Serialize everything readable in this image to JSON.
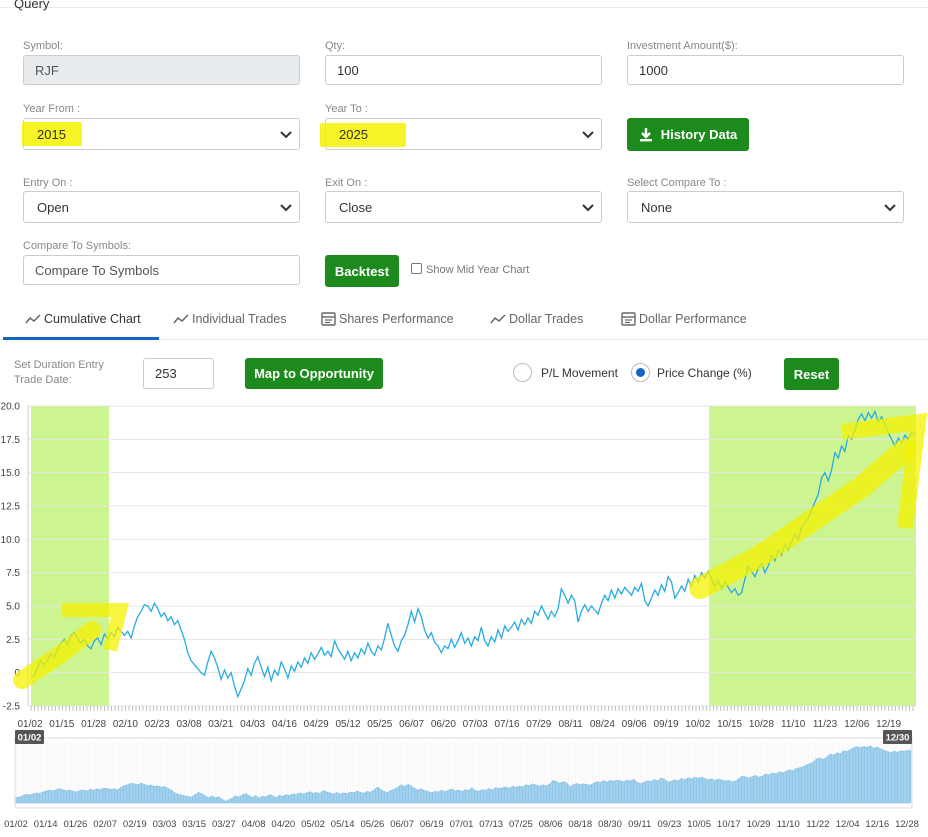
{
  "query": {
    "title": "Query",
    "symbol_label": "Symbol:",
    "symbol_value": "RJF",
    "qty_label": "Qty:",
    "qty_value": "100",
    "investment_label": "Investment Amount($):",
    "investment_value": "1000",
    "year_from_label": "Year From :",
    "year_from_value": "2015",
    "year_to_label": "Year To :",
    "year_to_value": "2025",
    "history_button": "History Data",
    "entry_on_label": "Entry On :",
    "entry_on_value": "Open",
    "exit_on_label": "Exit On :",
    "exit_on_value": "Close",
    "compare_label": "Select Compare To :",
    "compare_value": "None",
    "compare_symbols_label": "Compare To Symbols:",
    "compare_symbols_placeholder": "Compare To Symbols",
    "backtest_button": "Backtest",
    "mid_year_label": "Show Mid Year Chart"
  },
  "tabs": [
    {
      "label": "Cumulative Chart",
      "icon": "line-chart-icon"
    },
    {
      "label": "Individual Trades",
      "icon": "line-chart-icon"
    },
    {
      "label": "Shares Performance",
      "icon": "calendar-icon"
    },
    {
      "label": "Dollar Trades",
      "icon": "line-chart-icon"
    },
    {
      "label": "Dollar Performance",
      "icon": "calendar-icon"
    }
  ],
  "controls": {
    "duration_label_1": "Set Duration Entry",
    "duration_label_2": "Trade Date:",
    "duration_value": "253",
    "map_button": "Map to Opportunity",
    "pl_movement": "P/L Movement",
    "price_change": "Price Change (%)",
    "reset_button": "Reset"
  },
  "colors": {
    "accent_green": "#1d8a1d",
    "line": "#29abe2",
    "band": "#ccf490",
    "highlight": "#f4f200"
  },
  "chart_data": {
    "type": "line",
    "ylim": [
      -2.5,
      20
    ],
    "yticks": [
      "20.0",
      "17.5",
      "15.0",
      "12.5",
      "10.0",
      "7.5",
      "5.0",
      "2.5",
      "0",
      "-2.5"
    ],
    "xticks": [
      "01/02",
      "01/15",
      "01/28",
      "02/10",
      "02/23",
      "03/08",
      "03/21",
      "04/03",
      "04/16",
      "04/29",
      "05/12",
      "05/25",
      "06/07",
      "06/20",
      "07/03",
      "07/16",
      "07/29",
      "08/11",
      "08/24",
      "09/06",
      "09/19",
      "10/02",
      "10/15",
      "10/28",
      "11/10",
      "11/23",
      "12/06",
      "12/19"
    ],
    "nav_ticks": [
      "01/02",
      "01/14",
      "01/26",
      "02/07",
      "02/19",
      "03/03",
      "03/15",
      "03/27",
      "04/08",
      "04/20",
      "05/02",
      "05/14",
      "05/26",
      "06/07",
      "06/19",
      "07/01",
      "07/13",
      "07/25",
      "08/06",
      "08/18",
      "08/30",
      "09/11",
      "09/23",
      "10/05",
      "10/17",
      "10/29",
      "11/10",
      "11/22",
      "12/04",
      "12/16",
      "12/28"
    ],
    "nav_start": "01/02",
    "nav_end": "12/30",
    "series": [
      {
        "values": [
          -0.3,
          -0.2,
          0.4,
          0.9,
          0.6,
          1.0,
          1.4,
          1.2,
          1.8,
          2.2,
          2.5,
          2.1,
          2.8,
          3.0,
          2.6,
          2.2,
          2.5,
          2.0,
          1.8,
          2.4,
          2.6,
          2.1,
          2.9,
          2.5,
          3.0,
          2.7,
          3.4,
          3.1,
          2.8,
          3.1,
          2.6,
          3.5,
          4.2,
          4.6,
          5.1,
          5.0,
          4.6,
          5.2,
          4.8,
          4.2,
          4.5,
          3.9,
          4.2,
          3.6,
          3.9,
          3.2,
          2.5,
          1.5,
          0.9,
          0.6,
          0.3,
          0.0,
          -0.2,
          0.8,
          1.6,
          1.1,
          0.4,
          -0.5,
          0.2,
          -0.4,
          0.0,
          -1.0,
          -1.8,
          -1.2,
          -0.6,
          0.3,
          -0.2,
          0.7,
          1.2,
          0.4,
          -0.3,
          0.4,
          -0.6,
          0.2,
          -0.2,
          0.8,
          0.3,
          -0.4,
          0.5,
          0.1,
          0.8,
          0.4,
          1.1,
          0.7,
          1.5,
          1.0,
          1.4,
          1.9,
          1.3,
          1.6,
          1.2,
          2.4,
          1.8,
          1.4,
          1.0,
          1.6,
          0.9,
          1.5,
          1.1,
          1.8,
          1.4,
          2.2,
          1.6,
          1.3,
          2.0,
          1.7,
          2.6,
          3.7,
          2.8,
          2.0,
          1.6,
          2.4,
          2.8,
          3.6,
          4.6,
          3.8,
          4.8,
          4.2,
          3.2,
          2.6,
          3.0,
          2.3,
          2.0,
          1.5,
          2.0,
          1.8,
          2.5,
          1.9,
          2.4,
          3.0,
          2.2,
          2.6,
          2.0,
          2.7,
          2.4,
          3.4,
          2.4,
          2.0,
          2.7,
          2.3,
          3.2,
          2.6,
          3.5,
          3.1,
          3.4,
          3.8,
          3.2,
          4.0,
          3.6,
          4.1,
          3.7,
          4.6,
          4.3,
          5.0,
          4.5,
          4.0,
          4.6,
          4.2,
          4.8,
          6.3,
          5.8,
          5.2,
          5.8,
          5.4,
          3.8,
          4.6,
          5.1,
          4.6,
          5.0,
          4.7,
          4.4,
          5.2,
          5.8,
          5.4,
          6.2,
          5.6,
          6.3,
          5.9,
          6.4,
          6.1,
          5.8,
          6.4,
          6.1,
          6.7,
          5.4,
          5.0,
          5.6,
          6.2,
          5.8,
          6.6,
          6.1,
          7.2,
          6.8,
          5.6,
          6.0,
          6.5,
          6.1,
          7.0,
          6.5,
          7.3,
          6.8,
          7.5,
          7.1,
          7.6,
          7.0,
          6.5,
          6.9,
          6.3,
          6.8,
          6.4,
          6.0,
          6.3,
          5.8,
          6.0,
          7.0,
          8.0,
          7.6,
          7.2,
          7.8,
          8.2,
          7.5,
          8.0,
          8.8,
          8.4,
          9.2,
          8.8,
          9.6,
          9.2,
          9.8,
          10.4,
          10.0,
          10.9,
          11.2,
          11.6,
          12.2,
          12.8,
          13.4,
          14.6,
          15.0,
          14.4,
          15.2,
          16.5,
          16.1,
          17.0,
          16.6,
          17.8,
          17.5,
          18.2,
          19.0,
          19.4,
          18.9,
          19.5,
          19.1,
          19.6,
          18.8,
          19.2,
          18.6,
          18.0,
          17.5,
          17.0,
          17.6,
          17.2,
          17.8,
          17.5,
          18.0,
          17.8
        ]
      }
    ]
  }
}
